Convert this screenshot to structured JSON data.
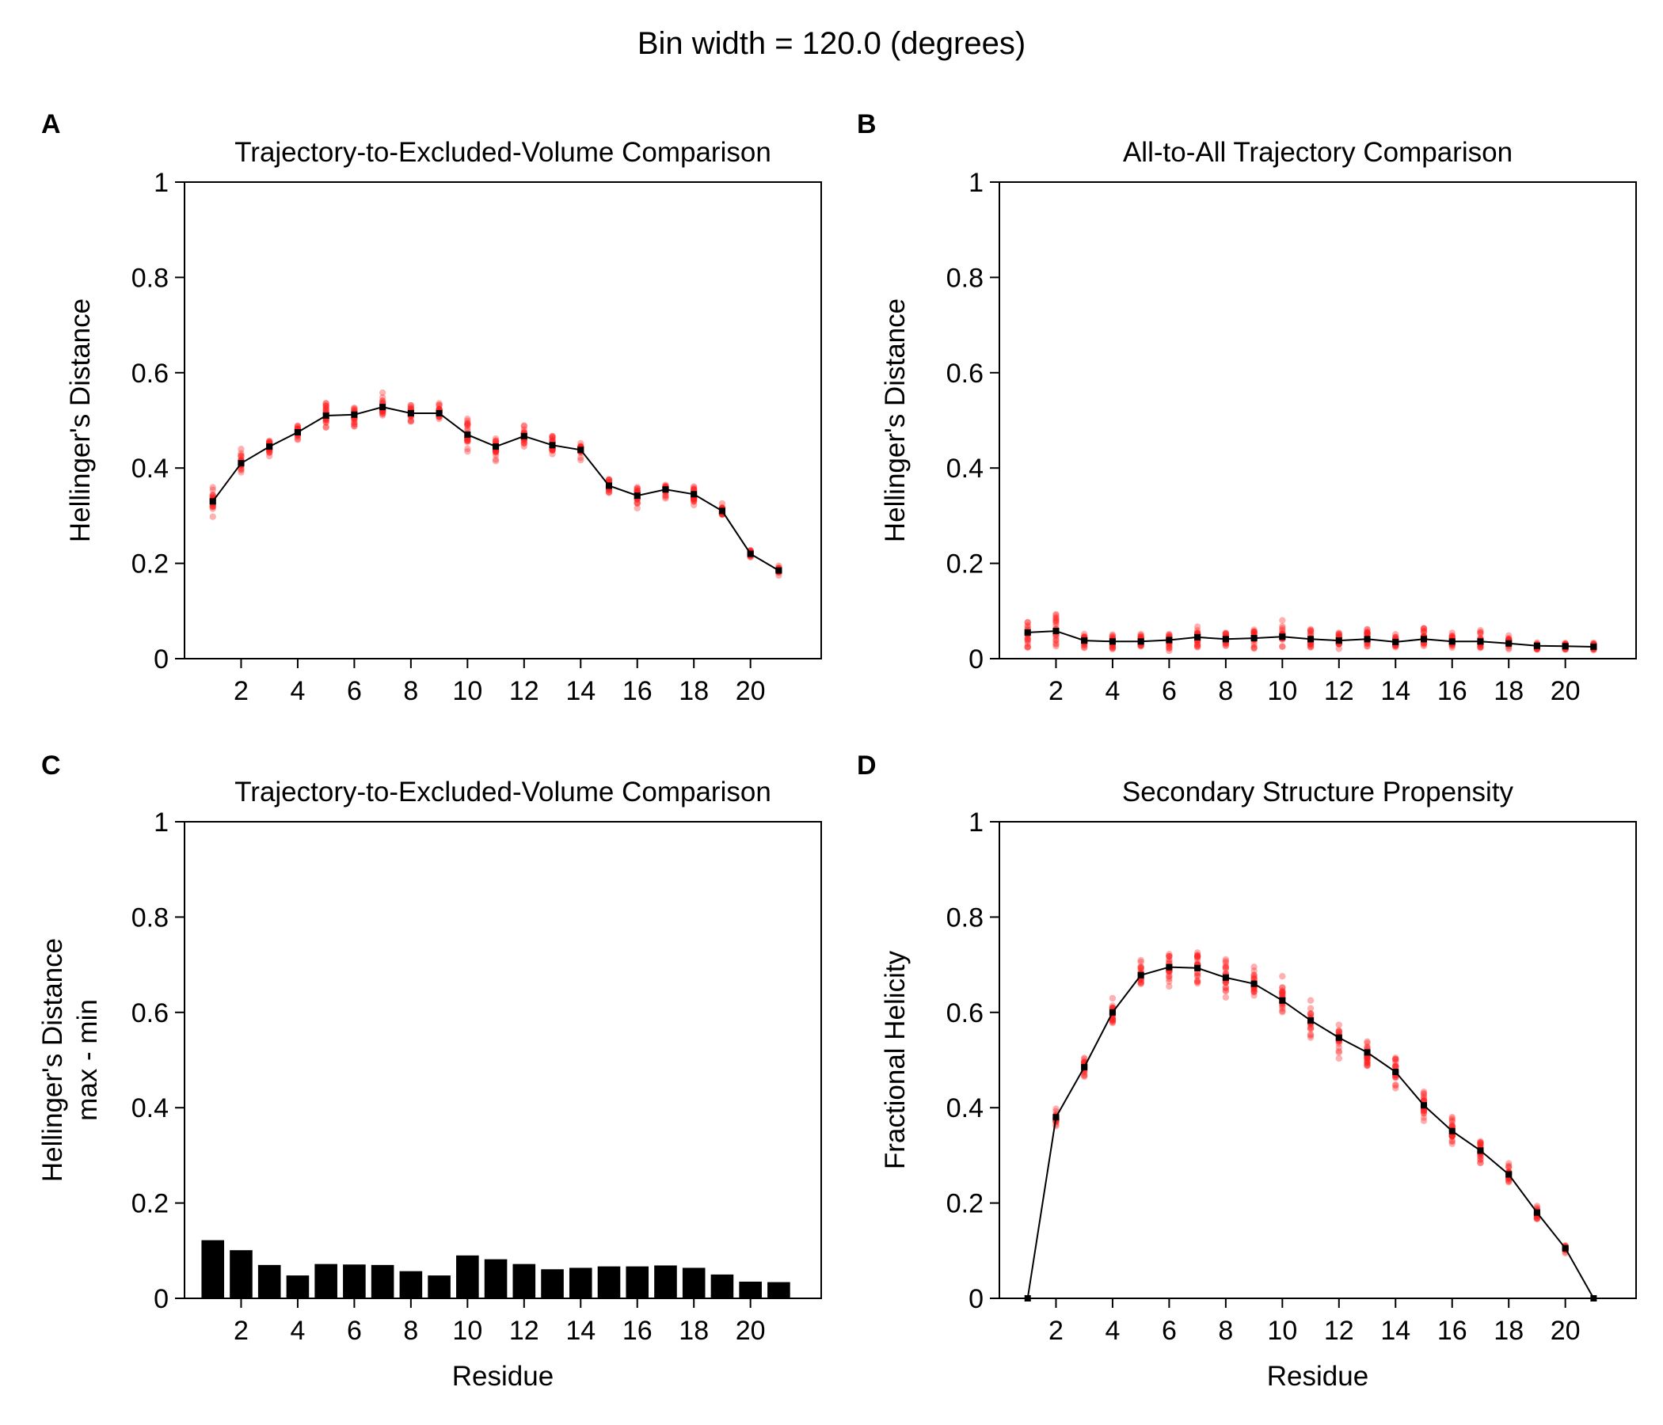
{
  "figure": {
    "suptitle": "Bin width = 120.0 (degrees)",
    "colors": {
      "line": "#000000",
      "scatter": "#ff2020",
      "bar": "#000000"
    }
  },
  "chart_data": [
    {
      "panel": "A",
      "type": "line",
      "title": "Trajectory-to-Excluded-Volume Comparison",
      "xlabel": "",
      "ylabel": [
        "Hellinger's Distance"
      ],
      "x": [
        1,
        2,
        3,
        4,
        5,
        6,
        7,
        8,
        9,
        10,
        11,
        12,
        13,
        14,
        15,
        16,
        17,
        18,
        19,
        20,
        21
      ],
      "xticks": [
        2,
        4,
        6,
        8,
        10,
        12,
        14,
        16,
        18,
        20
      ],
      "xlim": [
        0,
        22.5
      ],
      "ylim": [
        0,
        1
      ],
      "yticks": [
        0,
        0.2,
        0.4,
        0.6,
        0.8,
        1
      ],
      "ytick_labels": [
        "0",
        "0.2",
        "0.4",
        "0.6",
        "0.8",
        "1"
      ],
      "series": [
        {
          "kind": "mean-line",
          "values": [
            0.33,
            0.41,
            0.445,
            0.475,
            0.51,
            0.512,
            0.528,
            0.515,
            0.515,
            0.47,
            0.445,
            0.467,
            0.448,
            0.438,
            0.363,
            0.342,
            0.355,
            0.345,
            0.31,
            0.22,
            0.185
          ]
        },
        {
          "kind": "replicate-scatter",
          "spread": [
            0.065,
            0.05,
            0.042,
            0.028,
            0.045,
            0.04,
            0.042,
            0.033,
            0.032,
            0.055,
            0.04,
            0.036,
            0.034,
            0.035,
            0.03,
            0.038,
            0.04,
            0.035,
            0.025,
            0.015,
            0.015
          ]
        }
      ]
    },
    {
      "panel": "B",
      "type": "line",
      "title": "All-to-All Trajectory Comparison",
      "xlabel": "",
      "ylabel": [
        "Hellinger's Distance"
      ],
      "x": [
        1,
        2,
        3,
        4,
        5,
        6,
        7,
        8,
        9,
        10,
        11,
        12,
        13,
        14,
        15,
        16,
        17,
        18,
        19,
        20,
        21
      ],
      "xticks": [
        2,
        4,
        6,
        8,
        10,
        12,
        14,
        16,
        18,
        20
      ],
      "xlim": [
        0,
        22.5
      ],
      "ylim": [
        0,
        1
      ],
      "yticks": [
        0,
        0.2,
        0.4,
        0.6,
        0.8,
        1
      ],
      "ytick_labels": [
        "0",
        "0.2",
        "0.4",
        "0.6",
        "0.8",
        "1"
      ],
      "series": [
        {
          "kind": "mean-line",
          "values": [
            0.055,
            0.058,
            0.038,
            0.036,
            0.036,
            0.039,
            0.045,
            0.041,
            0.043,
            0.046,
            0.041,
            0.038,
            0.041,
            0.035,
            0.041,
            0.036,
            0.036,
            0.032,
            0.027,
            0.026,
            0.025
          ]
        },
        {
          "kind": "replicate-scatter",
          "spread": [
            0.055,
            0.075,
            0.028,
            0.028,
            0.026,
            0.035,
            0.038,
            0.03,
            0.032,
            0.05,
            0.042,
            0.035,
            0.038,
            0.028,
            0.038,
            0.032,
            0.035,
            0.028,
            0.018,
            0.015,
            0.015
          ]
        }
      ]
    },
    {
      "panel": "C",
      "type": "bar",
      "title": "Trajectory-to-Excluded-Volume Comparison",
      "xlabel": "Residue",
      "ylabel": [
        "Hellinger's Distance",
        "max - min"
      ],
      "categories": [
        1,
        2,
        3,
        4,
        5,
        6,
        7,
        8,
        9,
        10,
        11,
        12,
        13,
        14,
        15,
        16,
        17,
        18,
        19,
        20,
        21
      ],
      "values": [
        0.122,
        0.101,
        0.07,
        0.048,
        0.072,
        0.071,
        0.07,
        0.057,
        0.048,
        0.09,
        0.082,
        0.072,
        0.061,
        0.064,
        0.067,
        0.067,
        0.069,
        0.064,
        0.05,
        0.035,
        0.034
      ],
      "xticks": [
        2,
        4,
        6,
        8,
        10,
        12,
        14,
        16,
        18,
        20
      ],
      "xlim": [
        0,
        22.5
      ],
      "ylim": [
        0,
        1
      ],
      "yticks": [
        0,
        0.2,
        0.4,
        0.6,
        0.8,
        1
      ],
      "ytick_labels": [
        "0",
        "0.2",
        "0.4",
        "0.6",
        "0.8",
        "1"
      ]
    },
    {
      "panel": "D",
      "type": "line",
      "title": "Secondary Structure Propensity",
      "xlabel": "Residue",
      "ylabel": [
        "Fractional Helicity"
      ],
      "x": [
        1,
        2,
        3,
        4,
        5,
        6,
        7,
        8,
        9,
        10,
        11,
        12,
        13,
        14,
        15,
        16,
        17,
        18,
        19,
        20,
        21
      ],
      "xticks": [
        2,
        4,
        6,
        8,
        10,
        12,
        14,
        16,
        18,
        20
      ],
      "xlim": [
        0,
        22.5
      ],
      "ylim": [
        0,
        1
      ],
      "yticks": [
        0,
        0.2,
        0.4,
        0.6,
        0.8,
        1
      ],
      "ytick_labels": [
        "0",
        "0.2",
        "0.4",
        "0.6",
        "0.8",
        "1"
      ],
      "series": [
        {
          "kind": "mean-line",
          "values": [
            0.0,
            0.38,
            0.485,
            0.6,
            0.678,
            0.695,
            0.693,
            0.673,
            0.66,
            0.625,
            0.583,
            0.547,
            0.516,
            0.475,
            0.405,
            0.351,
            0.31,
            0.26,
            0.18,
            0.105,
            0.0
          ]
        },
        {
          "kind": "replicate-scatter",
          "spread": [
            0.0,
            0.035,
            0.04,
            0.055,
            0.055,
            0.06,
            0.065,
            0.065,
            0.065,
            0.075,
            0.065,
            0.07,
            0.055,
            0.05,
            0.055,
            0.055,
            0.045,
            0.035,
            0.025,
            0.015,
            0.0
          ]
        }
      ]
    }
  ]
}
